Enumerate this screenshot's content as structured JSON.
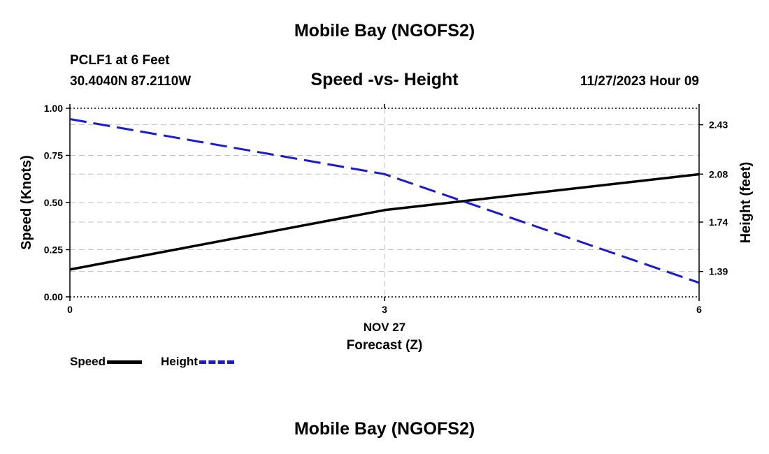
{
  "header": {
    "title": "Mobile Bay (NGOFS2)",
    "station": "PCLF1 at 6 Feet",
    "coords": "30.4040N  87.2110W",
    "date": "11/27/2023 Hour 09"
  },
  "footer": {
    "title": "Mobile Bay (NGOFS2)"
  },
  "chart_data": {
    "type": "line",
    "title": "Speed -vs- Height",
    "xlabel": "Forecast (Z)",
    "xdate_label": "NOV 27",
    "ylabel": "Speed (Knots)",
    "y2label": "Height (feet)",
    "x": [
      0,
      3,
      6
    ],
    "xlim": [
      0,
      6
    ],
    "xticks": [
      "0",
      "3",
      "6"
    ],
    "ylim": [
      0,
      1
    ],
    "yticks": [
      "0.00",
      "0.25",
      "0.50",
      "0.75",
      "1.00"
    ],
    "y2lim": [
      1.21,
      2.547
    ],
    "y2ticks": [
      "1.39",
      "1.74",
      "2.08",
      "2.43"
    ],
    "grid": true,
    "legend": "bottom-left",
    "series": [
      {
        "name": "Speed",
        "axis": "left",
        "color": "#000000",
        "style": "solid",
        "values": [
          0.145,
          0.46,
          0.65
        ]
      },
      {
        "name": "Height",
        "axis": "right",
        "color": "#1a1ad0",
        "style": "dashed",
        "values": [
          2.47,
          2.08,
          1.31
        ]
      }
    ]
  }
}
